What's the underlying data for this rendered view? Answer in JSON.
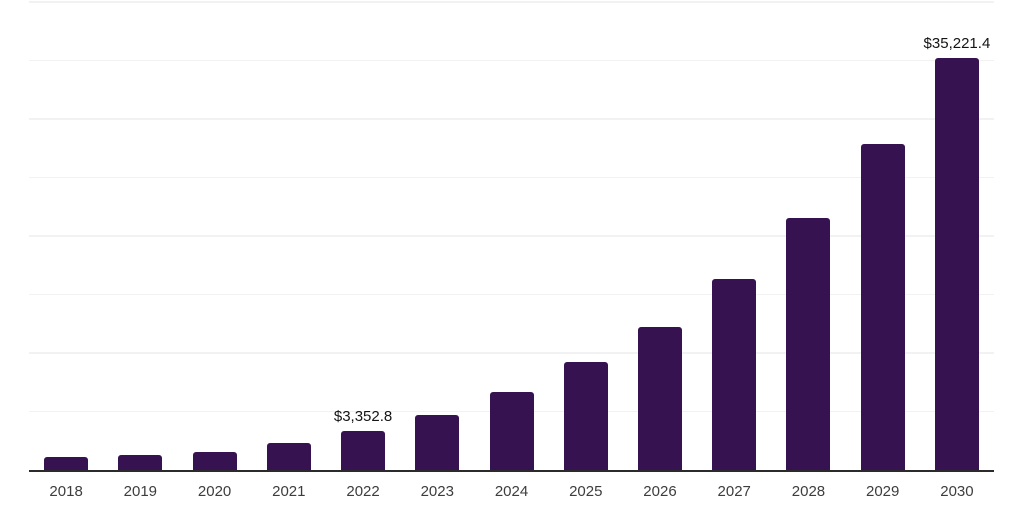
{
  "chart_data": {
    "type": "bar",
    "title": "",
    "xlabel": "",
    "ylabel": "",
    "categories": [
      "2018",
      "2019",
      "2020",
      "2021",
      "2022",
      "2023",
      "2024",
      "2025",
      "2026",
      "2027",
      "2028",
      "2029",
      "2030"
    ],
    "values": [
      1080,
      1250,
      1570,
      2290,
      3352.8,
      4730,
      6680,
      9190,
      12260,
      16360,
      21500,
      27840,
      35221.4
    ],
    "value_labels": [
      "",
      "",
      "",
      "",
      "$3,352.8",
      "",
      "",
      "",
      "",
      "",
      "",
      "",
      "$35,221.4"
    ],
    "labeled_points": [
      {
        "category": "2022",
        "label": "$3,352.8",
        "value": 3352.8
      },
      {
        "category": "2030",
        "label": "$35,221.4",
        "value": 35221.4
      }
    ],
    "ylim": [
      0,
      40000
    ],
    "grid_step": 5000,
    "grid": "horizontal",
    "y_axis_labels_visible": false,
    "legend": "none",
    "colors": {
      "bar": "#361350",
      "axis_line": "#2B2B2B",
      "gridline": "#F2F2F2",
      "tick_label": "#3D3D3D",
      "value_label": "#141414",
      "background": "#FFFFFF"
    }
  }
}
